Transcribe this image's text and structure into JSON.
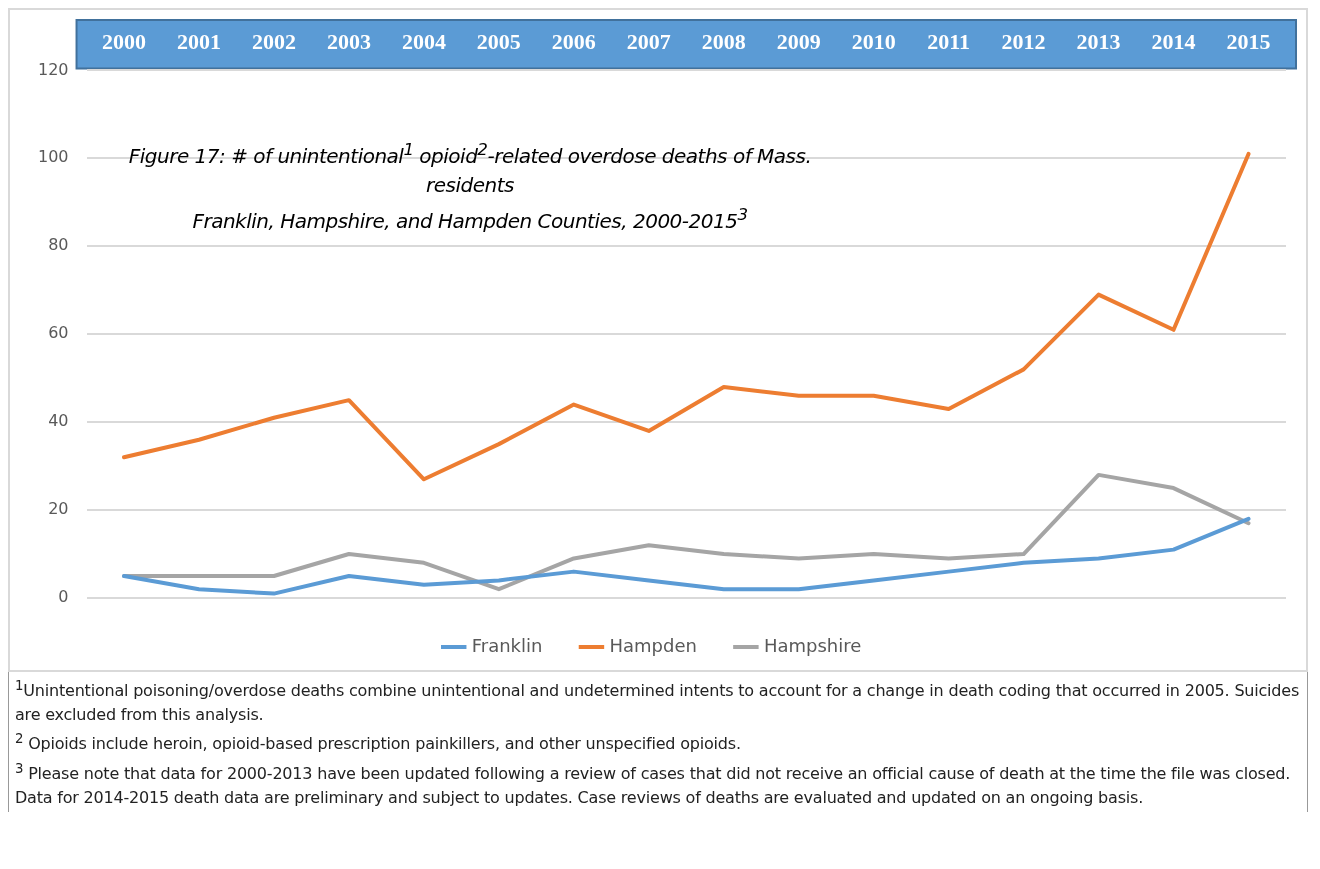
{
  "chart_data": {
    "type": "line",
    "title": "Figure 17: # of unintentional$^{1}$ opioid$^{2}$-related overdose deaths of Mass. residents",
    "subtitle": "Franklin, Hampshire, and Hampden Counties, 2000-2015$^{3}$",
    "categories": [
      "2000",
      "2001",
      "2002",
      "2003",
      "2004",
      "2005",
      "2006",
      "2007",
      "2008",
      "2009",
      "2010",
      "2011",
      "2012",
      "2013",
      "2014",
      "2015"
    ],
    "series": [
      {
        "name": "Franklin",
        "color": "#5b9bd5",
        "values": [
          5,
          2,
          1,
          5,
          3,
          4,
          6,
          4,
          2,
          2,
          4,
          6,
          8,
          9,
          11,
          18
        ]
      },
      {
        "name": "Hampden",
        "color": "#ed7d31",
        "values": [
          32,
          36,
          41,
          45,
          27,
          35,
          44,
          38,
          48,
          46,
          46,
          43,
          52,
          69,
          61,
          101
        ]
      },
      {
        "name": "Hampshire",
        "color": "#a5a5a5",
        "values": [
          5,
          5,
          5,
          10,
          8,
          2,
          9,
          12,
          10,
          9,
          10,
          9,
          10,
          28,
          25,
          17
        ]
      }
    ],
    "ylim": [
      0,
      120
    ],
    "yticks": [
      0,
      20,
      40,
      60,
      80,
      100,
      120
    ],
    "grid": "y",
    "legend": "bottom",
    "marker": "none",
    "line_style": "solid",
    "annotations": [
      "$^{1}$Unintentional poisoning/overdose deaths combine unintentional and undetermined intents to account for a change in death coding that occurred in 2005. Suicides are excluded from this analysis.",
      "$^{2}$ Opioids include heroin, opioid-based prescription painkillers, and other unspecified opioids.",
      "$^{3}$ Please note that data for 2000-2013 have been updated following a review of cases that did not receive an official cause of death at the time the file was closed. Data for 2014-2015 death data are preliminary and subject to updates. Case reviews of deaths are evaluated and updated on an ongoing basis."
    ]
  }
}
